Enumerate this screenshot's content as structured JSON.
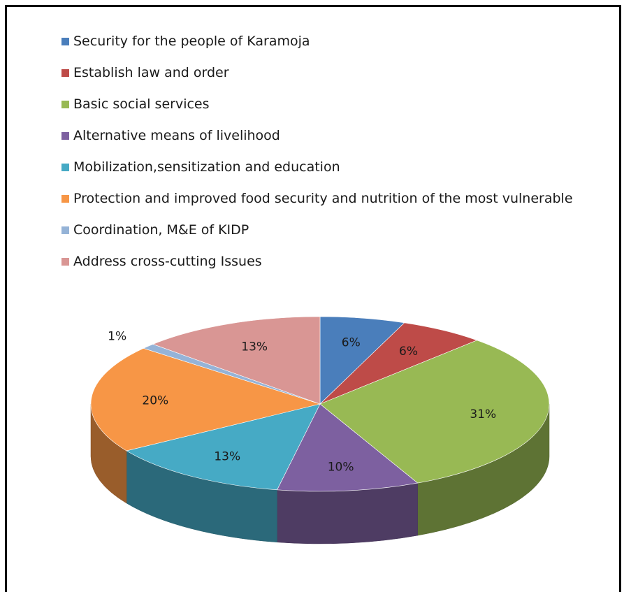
{
  "chart_data": {
    "type": "pie",
    "title": "",
    "legend_position": "top",
    "slices": [
      {
        "label": "Security for the people of Karamoja",
        "value": 6,
        "display": "6%",
        "color": "#4A7EBB"
      },
      {
        "label": "Establish law and order",
        "value": 6,
        "display": "6%",
        "color": "#BE4B48"
      },
      {
        "label": "Basic social services",
        "value": 31,
        "display": "31%",
        "color": "#98B954"
      },
      {
        "label": "Alternative means of livelihood",
        "value": 10,
        "display": "10%",
        "color": "#7D60A0"
      },
      {
        "label": "Mobilization,sensitization and education",
        "value": 13,
        "display": "13%",
        "color": "#46AAC5"
      },
      {
        "label": "Protection and improved food security and nutrition of the most vulnerable",
        "value": 20,
        "display": "20%",
        "color": "#F79646"
      },
      {
        "label": "Coordination, M&E of KIDP",
        "value": 1,
        "display": "1%",
        "color": "#95B3D7"
      },
      {
        "label": "Address cross-cutting Issues",
        "value": 13,
        "display": "13%",
        "color": "#D99694"
      }
    ]
  }
}
